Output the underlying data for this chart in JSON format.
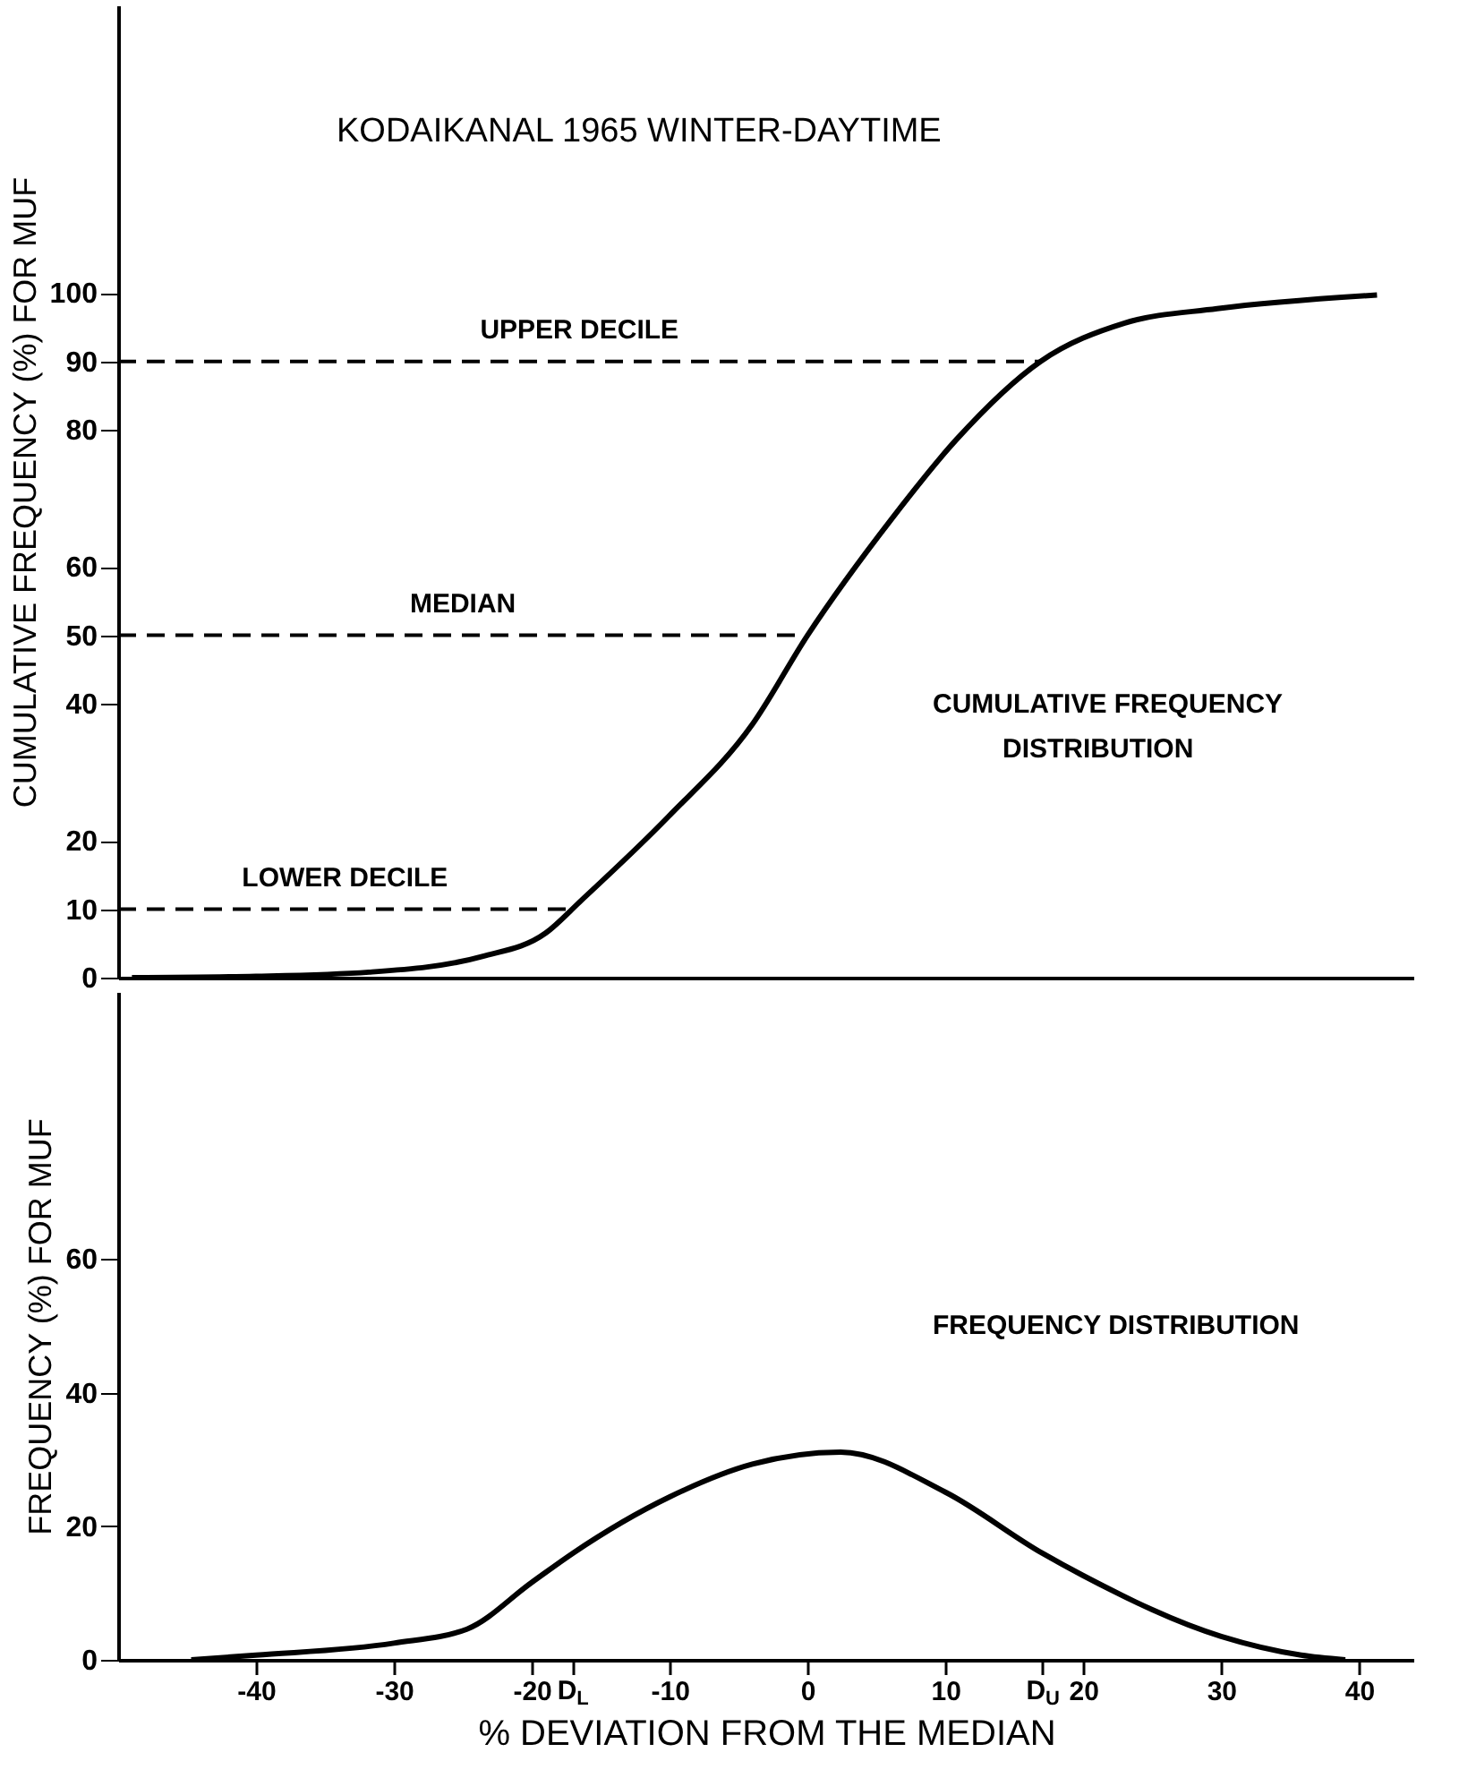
{
  "chart_data": [
    {
      "type": "line",
      "title": "KODAIKANAL  1965  WINTER-DAYTIME",
      "ylabel": "CUMULATIVE FREQUENCY (%) FOR MUF",
      "xlim": [
        -50,
        44
      ],
      "ylim": [
        0,
        142
      ],
      "yticks": [
        0,
        10,
        20,
        40,
        50,
        60,
        80,
        90,
        100
      ],
      "tick_labels": "y",
      "grid": false,
      "line_style": "solid",
      "series": [
        {
          "color": "#000000",
          "x": [
            -49,
            -40,
            -31.8,
            -23.6,
            -19,
            -16.4,
            -10.1,
            -4,
            0,
            6.1,
            10.8,
            16.9,
            23,
            29.7,
            41.3
          ],
          "values": [
            0,
            0.2,
            0.8,
            3.1,
            6.5,
            11.3,
            23.5,
            37,
            50,
            67,
            78.6,
            90,
            95.6,
            97.7,
            99.7
          ]
        }
      ],
      "ref_lines": [
        {
          "axis": "y",
          "value": 90,
          "label": "UPPER  DECILE",
          "color": "#000000",
          "line_style": "dashed"
        },
        {
          "axis": "y",
          "value": 50,
          "label": "MEDIAN",
          "color": "#000000",
          "line_style": "dashed"
        },
        {
          "axis": "y",
          "value": 10,
          "label": "LOWER  DECILE",
          "color": "#000000",
          "line_style": "dashed"
        }
      ],
      "annotations": [
        "CUMULATIVE  FREQUENCY",
        "DISTRIBUTION"
      ]
    },
    {
      "type": "line",
      "ylabel": "FREQUENCY (%) FOR MUF",
      "xlabel": "% DEVIATION  FROM  THE  MEDIAN",
      "xlim": [
        -50,
        44
      ],
      "ylim": [
        0,
        100
      ],
      "yticks": [
        0,
        20,
        40,
        60
      ],
      "xticks": [
        -40,
        -30,
        -20,
        {
          "value": -17,
          "label": "D$_{L}$"
        },
        -10,
        0,
        10,
        {
          "value": 17,
          "label": "D$_{U}$"
        },
        20,
        30,
        40
      ],
      "grid": false,
      "line_style": "solid",
      "series": [
        {
          "color": "#000000",
          "x": [
            -44.7,
            -40,
            -30,
            -24.7,
            -20,
            -17,
            -10,
            -4,
            2.4,
            10,
            17,
            20,
            30,
            35.8,
            39
          ],
          "values": [
            0,
            0.7,
            2.5,
            4.6,
            11.6,
            16,
            24.4,
            29.3,
            31.1,
            25.1,
            16,
            12.6,
            3.5,
            0.7,
            0
          ]
        }
      ],
      "annotations": [
        "FREQUENCY  DISTRIBUTION"
      ]
    }
  ]
}
